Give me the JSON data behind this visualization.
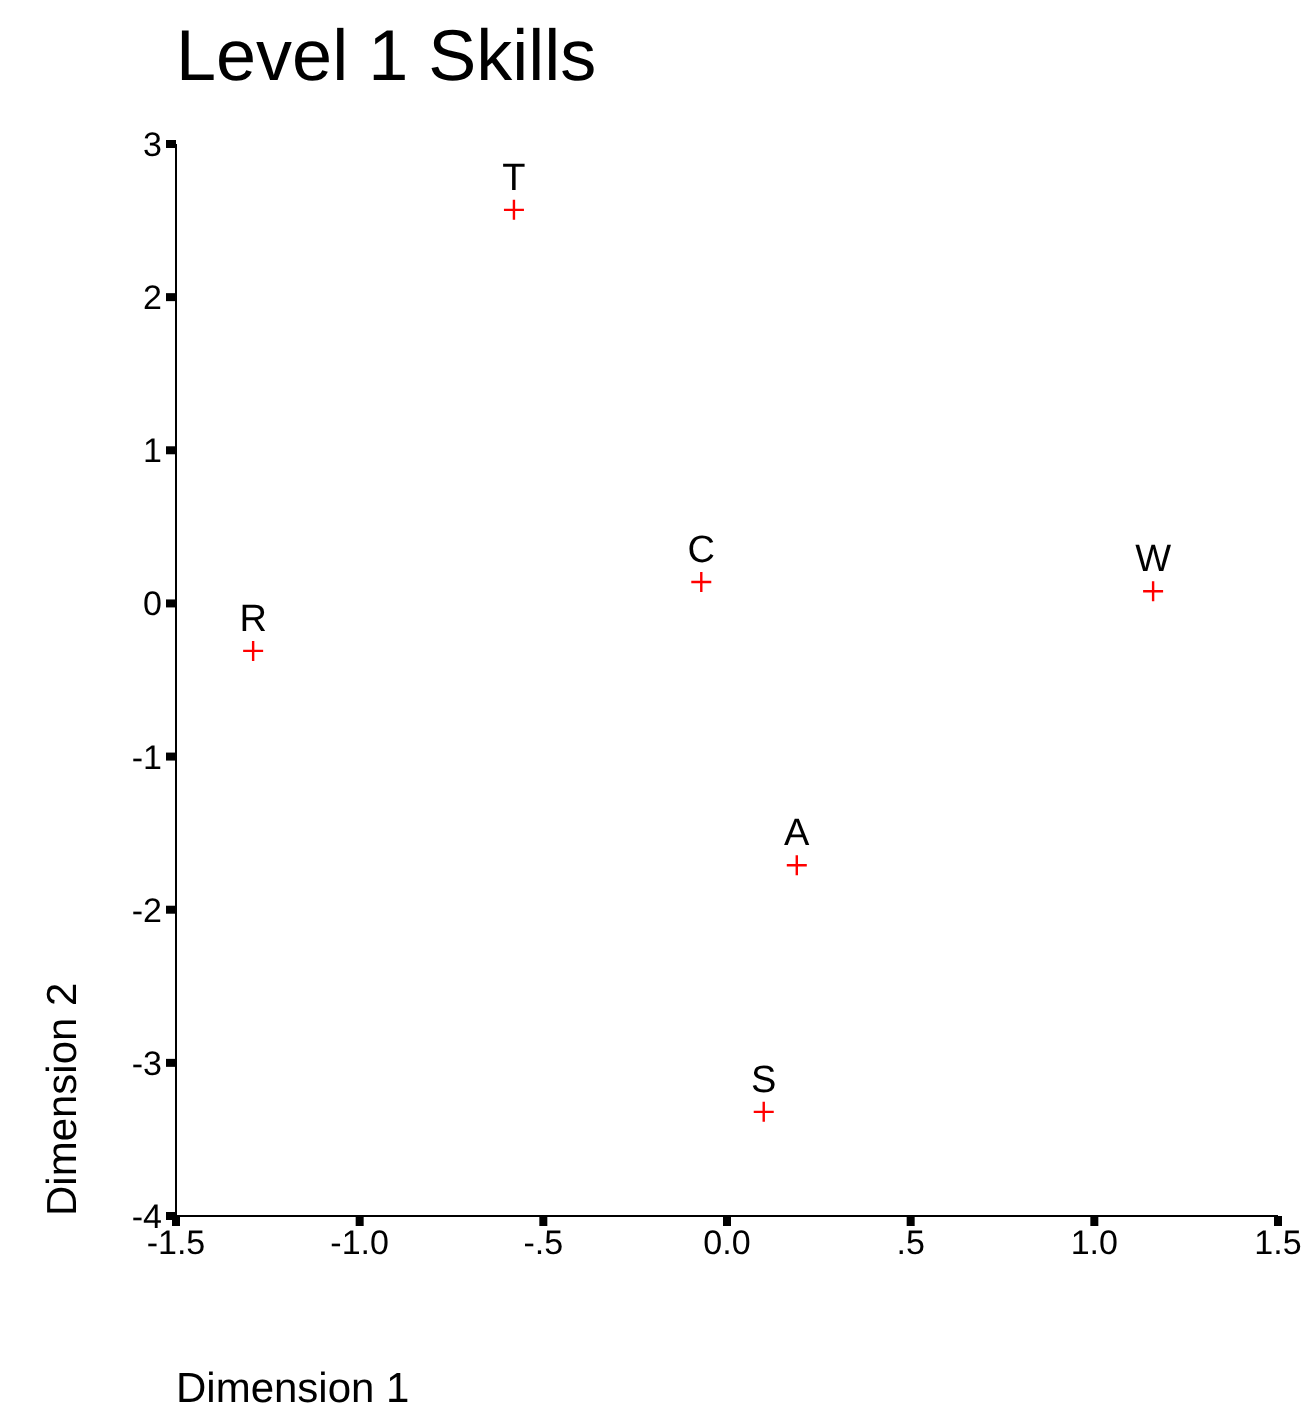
{
  "chart_data": {
    "type": "scatter",
    "title": "Level 1 Skills",
    "xlabel": "Dimension 1",
    "ylabel": "Dimension 2",
    "x": [
      -0.58,
      -0.07,
      1.16,
      -1.29,
      0.19,
      0.1
    ],
    "values": [
      2.57,
      0.14,
      0.08,
      -0.31,
      -1.71,
      -3.32
    ],
    "color": "#ff0000",
    "marker": "cross",
    "xlim": [
      -1.5,
      1.5
    ],
    "ylim": [
      -4,
      3
    ],
    "xticks": [
      {
        "value": -1.5,
        "label": "-1.5"
      },
      {
        "value": -1,
        "label": "-1.0"
      },
      {
        "value": -0.5,
        "label": "-.5"
      },
      {
        "value": 0,
        "label": "0.0"
      },
      {
        "value": 0.5,
        "label": ".5"
      },
      {
        "value": 1,
        "label": "1.0"
      },
      {
        "value": 1.5,
        "label": "1.5"
      }
    ],
    "yticks": [
      -4,
      -3,
      -2,
      -1,
      0,
      1,
      2,
      3
    ],
    "annotations": [
      {
        "text": "T",
        "x": -0.58,
        "y": 2.57
      },
      {
        "text": "C",
        "x": -0.07,
        "y": 0.14
      },
      {
        "text": "W",
        "x": 1.16,
        "y": 0.08
      },
      {
        "text": "R",
        "x": -1.29,
        "y": -0.31
      },
      {
        "text": "A",
        "x": 0.19,
        "y": -1.71
      },
      {
        "text": "S",
        "x": 0.1,
        "y": -3.32
      }
    ],
    "grid": false,
    "legend": false
  }
}
